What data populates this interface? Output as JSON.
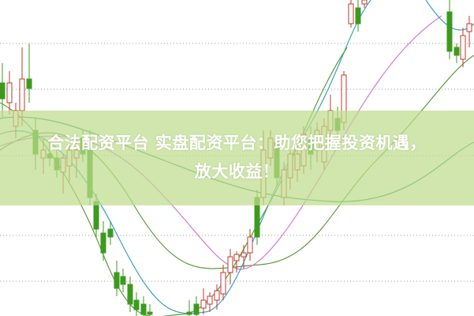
{
  "headline": {
    "line1": "合法配资平台 实盘配资平台：助您把握投资机遇，",
    "line2": "放大收益！"
  },
  "colors": {
    "up_candle": "#c0392b",
    "down_candle": "#3c9a1e",
    "banner": "#c4dd96",
    "ma_lines": [
      "#2e8b57",
      "#5e9c3a",
      "#d27ad0",
      "#3aa0c8"
    ]
  }
}
